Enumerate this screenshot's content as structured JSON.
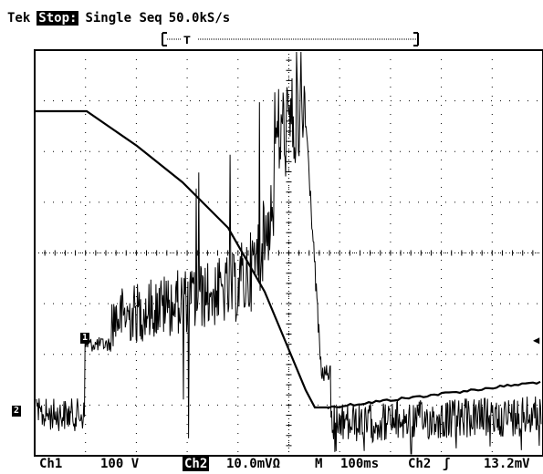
{
  "header": {
    "brand": "Tek",
    "status": "Stop:",
    "mode": "Single Seq",
    "sample_rate": "50.0kS/s"
  },
  "trigger_marker": "T",
  "markers": {
    "ch1": "1",
    "ch2": "2",
    "trigger_level_arrow": "◀"
  },
  "footer": {
    "ch1_label": "Ch1",
    "ch1_scale": "100 V",
    "ch2_label": "Ch2",
    "ch2_scale": "10.0mVΩ",
    "timebase_label": "M",
    "timebase": "100ms",
    "trigger_source": "Ch2",
    "trigger_slope": "ʃ",
    "trigger_level": "13.2mV"
  },
  "colors": {
    "background": "#ffffff",
    "trace": "#000000",
    "grid": "#000000"
  }
}
